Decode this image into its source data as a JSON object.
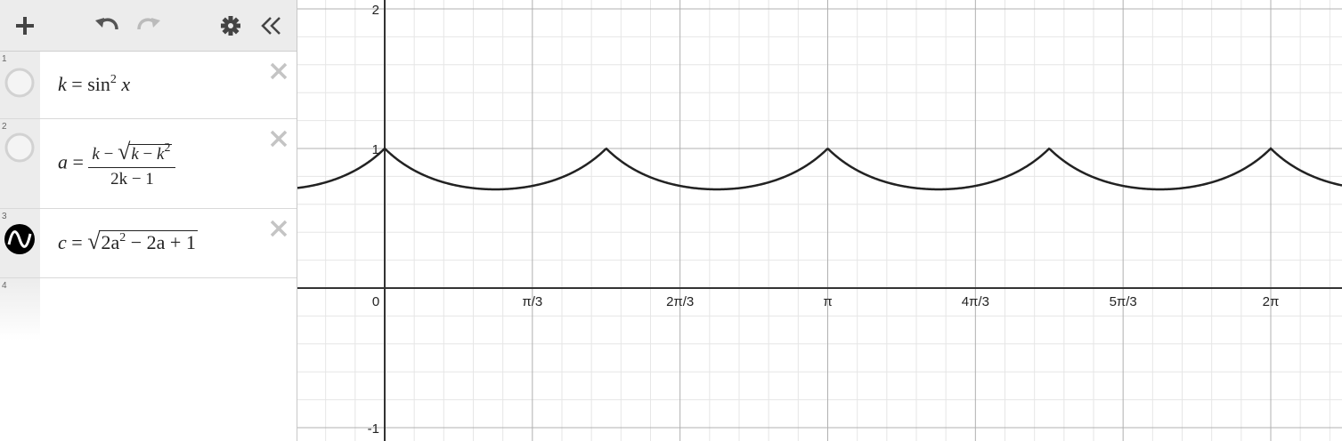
{
  "toolbar": {
    "add_icon": "plus-icon",
    "undo_icon": "undo-icon",
    "redo_icon": "redo-icon",
    "settings_icon": "gear-icon",
    "collapse_icon": "double-chevron-left-icon"
  },
  "expressions": [
    {
      "num": "1",
      "lhs": "k",
      "eq": "=",
      "fn": "sin",
      "exp": "2",
      "var": "x",
      "icon": "hidden-circle-icon"
    },
    {
      "num": "2",
      "lhs": "a",
      "eq": "=",
      "num_k": "k",
      "minus": "−",
      "rad_k": "k",
      "rad_minus": "−",
      "rad_k2": "k",
      "rad_exp": "2",
      "den": "2k − 1",
      "icon": "hidden-circle-icon"
    },
    {
      "num": "3",
      "lhs": "c",
      "eq": "=",
      "rad_a": "2a",
      "rad_exp": "2",
      "rad_rest": " − 2a + 1",
      "icon": "graph-wave-icon"
    },
    {
      "num": "4"
    }
  ],
  "graph": {
    "x_ticks": [
      "0",
      "π/3",
      "2π/3",
      "π",
      "4π/3",
      "5π/3",
      "2π"
    ],
    "y_ticks": [
      "2",
      "1",
      "-1"
    ],
    "curve_color": "#222222"
  }
}
